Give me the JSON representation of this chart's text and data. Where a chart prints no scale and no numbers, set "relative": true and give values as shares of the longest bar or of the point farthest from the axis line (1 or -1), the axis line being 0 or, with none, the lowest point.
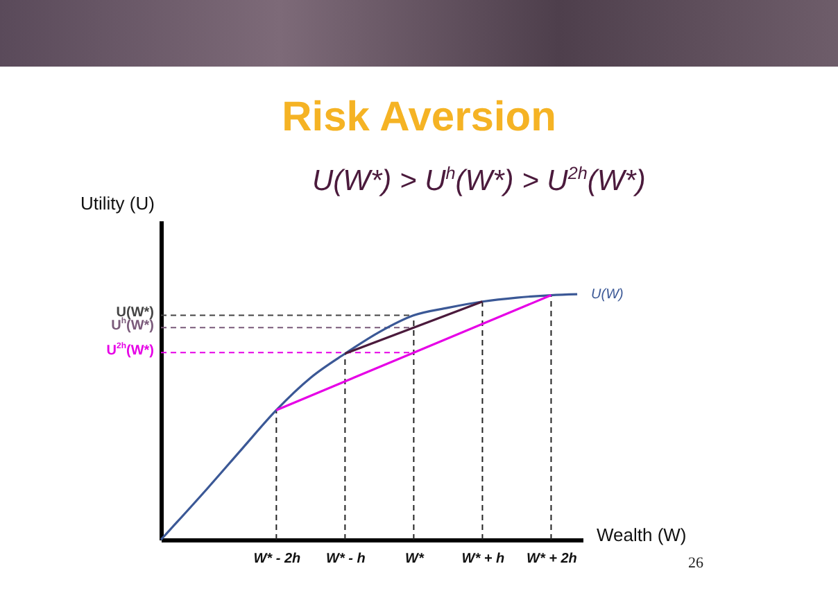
{
  "chart_data": {
    "type": "line",
    "title": "Risk Aversion",
    "subtitle": "U(W*) > U$^{h}$(W*) > U$^{2h}$(W*)",
    "xlabel": "Wealth (W)",
    "ylabel": "Utility (U)",
    "relative": true,
    "grid": false,
    "marker": "none",
    "line_style": "solid",
    "xlim": [
      -3.68,
      2.46
    ],
    "xticks": [
      {
        "value": -2,
        "label": "W* - 2h"
      },
      {
        "value": -1,
        "label": "W* - h"
      },
      {
        "value": 0,
        "label": "W*"
      },
      {
        "value": 1,
        "label": "W* + h"
      },
      {
        "value": 2,
        "label": "W* + 2h"
      }
    ],
    "series": [
      {
        "name": "U(W)",
        "color": "#3b5896",
        "x": [
          -3.68,
          -3,
          -2.5,
          -2,
          -1.5,
          -1,
          -0.5,
          0,
          0.5,
          1,
          1.5,
          2,
          2.38
        ],
        "values": [
          0,
          0.21,
          0.37,
          0.528,
          0.66,
          0.758,
          0.846,
          0.914,
          0.945,
          0.97,
          0.986,
          0.996,
          1
        ]
      },
      {
        "color": "#4b1a3c",
        "x": [
          -1,
          1
        ],
        "values": [
          0.758,
          0.97
        ]
      },
      {
        "color": "#e600e6",
        "x": [
          -2,
          2
        ],
        "values": [
          0.528,
          0.996
        ]
      }
    ],
    "ref_lines": [
      {
        "axis": "y",
        "value": 0.914,
        "label": "U(W*)",
        "color": "#444444",
        "line_style": "dashed"
      },
      {
        "axis": "y",
        "value": 0.864,
        "label": "U$^{h}$(W*)",
        "color": "#7a5a7a",
        "line_style": "dashed"
      },
      {
        "axis": "y",
        "value": 0.762,
        "label": "U$^{2h}$(W*)",
        "color": "#e600e6",
        "line_style": "dashed"
      },
      {
        "axis": "x",
        "value": -2,
        "color": "#222222",
        "line_style": "dashed"
      },
      {
        "axis": "x",
        "value": -1,
        "color": "#222222",
        "line_style": "dashed"
      },
      {
        "axis": "x",
        "value": 0,
        "color": "#222222",
        "line_style": "dashed"
      },
      {
        "axis": "x",
        "value": 1,
        "color": "#222222",
        "line_style": "dashed"
      },
      {
        "axis": "x",
        "value": 2,
        "color": "#222222",
        "line_style": "dashed"
      }
    ],
    "annotations": [
      "26"
    ]
  }
}
